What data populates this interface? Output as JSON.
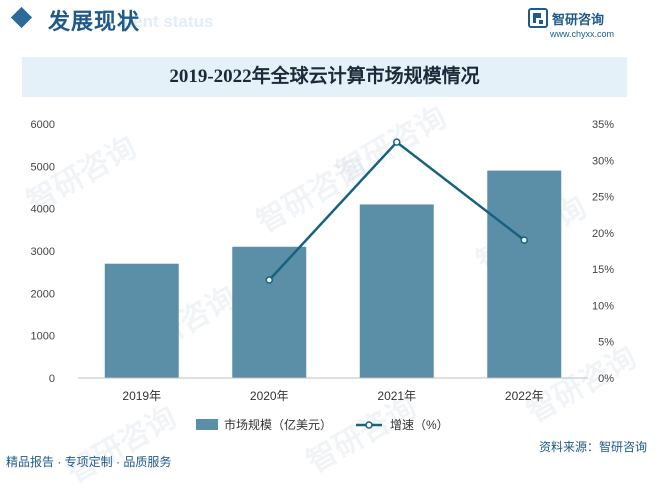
{
  "header": {
    "title": "发展现状",
    "subtitle": "ment status"
  },
  "brand": {
    "name": "智研咨询",
    "url": "www.chyxx.com"
  },
  "footer": {
    "left": "精品报告 · 专项定制 · 品质服务",
    "source": "资料来源：智研咨询"
  },
  "watermark": "智研咨询",
  "colors": {
    "bar": "#5b8fa8",
    "line": "#16627f",
    "title_band": "#e4f1f8",
    "brand": "#1f5a8a"
  },
  "chart_data": {
    "type": "bar",
    "title": "2019-2022年全球云计算市场规模情况",
    "categories": [
      "2019年",
      "2020年",
      "2021年",
      "2022年"
    ],
    "series": [
      {
        "name": "市场规模（亿美元）",
        "type": "bar",
        "axis": "left",
        "values": [
          2700,
          3100,
          4100,
          4900
        ]
      },
      {
        "name": "增速（%）",
        "type": "line",
        "axis": "right",
        "values": [
          null,
          13.5,
          32.5,
          19.0
        ]
      }
    ],
    "y_left": {
      "min": 0,
      "max": 6000,
      "ticks": [
        "0",
        "1000",
        "2000",
        "3000",
        "4000",
        "5000",
        "6000"
      ]
    },
    "y_right": {
      "min": 0,
      "max": 35,
      "ticks": [
        "0%",
        "5%",
        "10%",
        "15%",
        "20%",
        "25%",
        "30%",
        "35%"
      ]
    },
    "grid": false,
    "legend_position": "bottom"
  }
}
